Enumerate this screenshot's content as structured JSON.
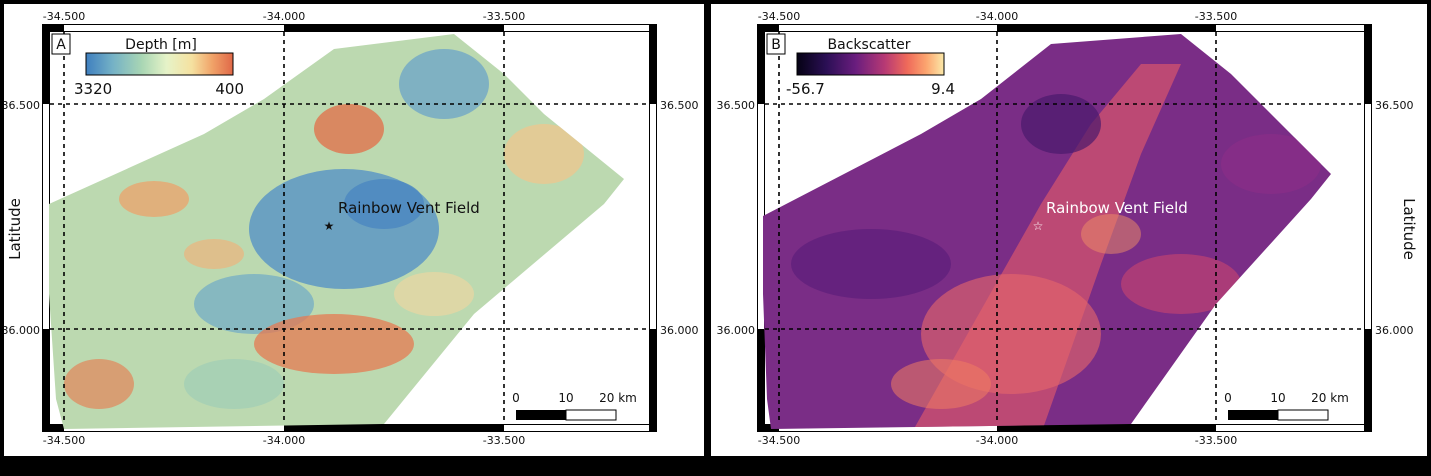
{
  "colors": {
    "background": "#000000",
    "frame": "#000000",
    "depth_ramp": [
      "#3f7fbf",
      "#74b1c6",
      "#a9d6b4",
      "#e6f3c8",
      "#f5e1a0",
      "#f0a268",
      "#e06848"
    ],
    "backscatter_ramp": [
      "#050214",
      "#2b0f55",
      "#6a1d7e",
      "#b83a74",
      "#ef6a5a",
      "#fca56f",
      "#fbe9a9"
    ],
    "depth_fill": "#bcd9b0",
    "backscatter_fill": "#7a2d86"
  },
  "panels": [
    {
      "id": "A",
      "letter": "A",
      "legend": {
        "title": "Depth [m]",
        "min_label": "3320",
        "max_label": "400",
        "ramp": "depth"
      },
      "y_axis_label": "Latitude",
      "x_ticks": [
        "-34.500",
        "-34.000",
        "-33.500"
      ],
      "y_ticks": [
        "36.500",
        "36.000"
      ],
      "feature": {
        "label": "Rainbow Vent Field",
        "marker": "star-icon",
        "color": "#111111"
      },
      "scale_bar": {
        "labels": [
          "0",
          "10",
          "20 km"
        ]
      }
    },
    {
      "id": "B",
      "letter": "B",
      "legend": {
        "title": "Backscatter",
        "min_label": "-56.7",
        "max_label": "9.4",
        "ramp": "backscatter"
      },
      "y_axis_label": "Latitude",
      "x_ticks": [
        "-34.500",
        "-34.000",
        "-33.500"
      ],
      "y_ticks": [
        "36.500",
        "36.000"
      ],
      "feature": {
        "label": "Rainbow Vent Field",
        "marker": "star-icon",
        "color": "#ffffff"
      },
      "scale_bar": {
        "labels": [
          "0",
          "10",
          "20 km"
        ]
      }
    }
  ]
}
